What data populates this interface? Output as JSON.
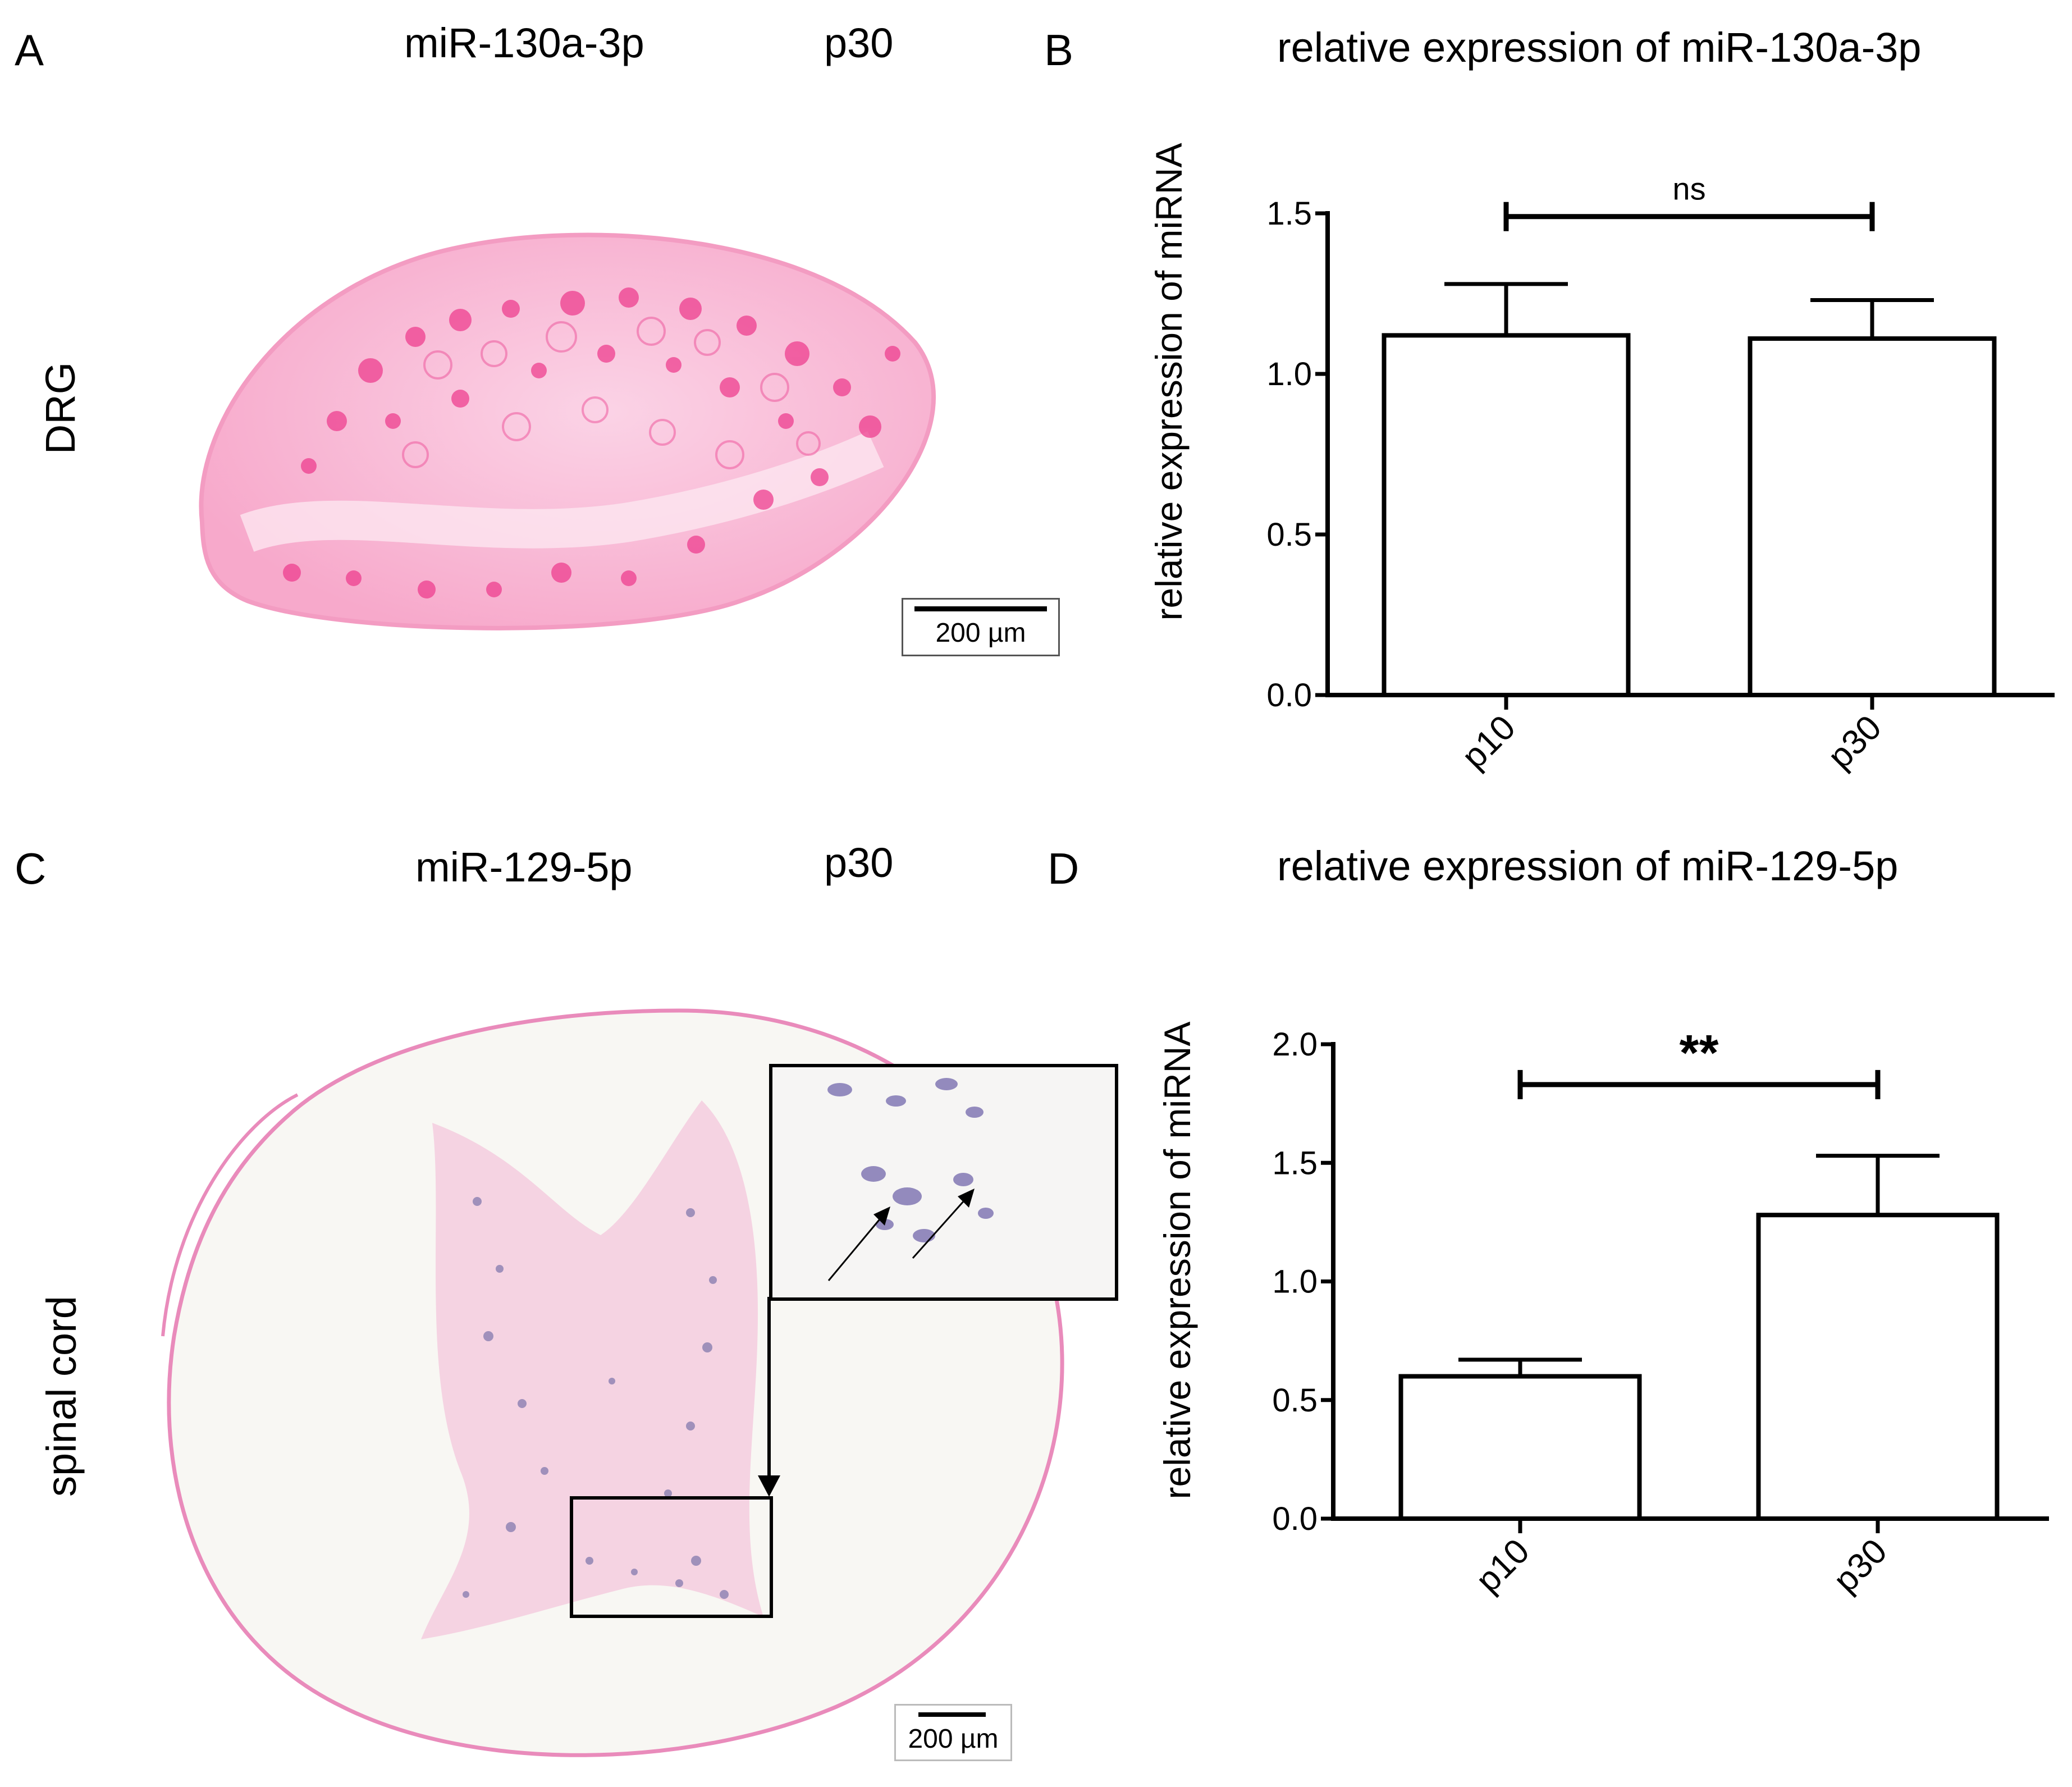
{
  "panels": {
    "A": {
      "letter": "A",
      "probe": "miR-130a-3p",
      "age": "p30",
      "tissue": "DRG",
      "scale_label": "200 µm",
      "stain_color": "#ee3f8f"
    },
    "B": {
      "letter": "B",
      "title": "relative expression of miR-130a-3p"
    },
    "C": {
      "letter": "C",
      "probe": "miR-129-5p",
      "age": "p30",
      "tissue": "spinal cord",
      "scale_label": "200 µm",
      "stain_color": "#e98bbb",
      "signal_color": "#5a5a9a"
    },
    "D": {
      "letter": "D",
      "title": "relative expression of miR-129-5p"
    }
  },
  "chart_data": [
    {
      "id": "B",
      "type": "bar",
      "title": "relative expression of miR-130a-3p",
      "ylabel": "relative expression of miRNA",
      "xlabel": "",
      "categories": [
        "p10",
        "p30"
      ],
      "values": [
        1.12,
        1.11
      ],
      "errors": [
        0.16,
        0.12
      ],
      "ylim": [
        0,
        1.5
      ],
      "yticks": [
        0.0,
        0.5,
        1.0,
        1.5
      ],
      "ytick_labels": [
        "0.0",
        "0.5",
        "1.0",
        "1.5"
      ],
      "significance": {
        "from": "p10",
        "to": "p30",
        "label": "ns",
        "y": 1.49
      }
    },
    {
      "id": "D",
      "type": "bar",
      "title": "relative expression of miR-129-5p",
      "ylabel": "relative expression of miRNA",
      "xlabel": "",
      "categories": [
        "p10",
        "p30"
      ],
      "values": [
        0.6,
        1.28
      ],
      "errors": [
        0.07,
        0.25
      ],
      "ylim": [
        0,
        2.0
      ],
      "yticks": [
        0.0,
        0.5,
        1.0,
        1.5,
        2.0
      ],
      "ytick_labels": [
        "0.0",
        "0.5",
        "1.0",
        "1.5",
        "2.0"
      ],
      "significance": {
        "from": "p10",
        "to": "p30",
        "label": "**",
        "y": 1.83
      }
    }
  ]
}
